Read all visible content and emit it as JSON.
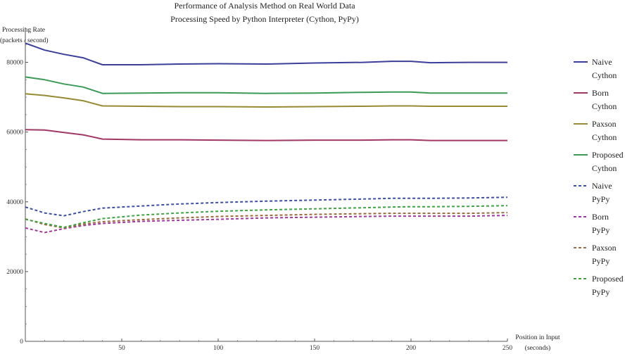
{
  "chart_data": {
    "type": "line",
    "title": "Performance of  Analysis Method on Real World Data",
    "subtitle": "Processing Speed by Python Interpreter (Cython, PyPy)",
    "ylabel": [
      "Processing Rate",
      "(packets / second)"
    ],
    "xlabel": [
      "Position in Input",
      "(seconds)"
    ],
    "xlim": [
      0,
      250
    ],
    "ylim": [
      0,
      90000
    ],
    "x_ticks": [
      50,
      100,
      150,
      200,
      250
    ],
    "y_ticks": [
      0,
      20000,
      40000,
      60000,
      80000
    ],
    "x_tick_labels": [
      "50",
      "100",
      "150",
      "200",
      "250"
    ],
    "y_tick_labels": [
      "0",
      "20000",
      "40000",
      "60000",
      "80000"
    ],
    "legend_position": "right",
    "x": [
      0,
      10,
      20,
      30,
      40,
      60,
      80,
      100,
      125,
      150,
      175,
      190,
      200,
      210,
      230,
      250
    ],
    "series": [
      {
        "name": [
          "Naive",
          "Cython"
        ],
        "color": "#3b3f9a",
        "style": "solid",
        "values": [
          85500,
          83500,
          82300,
          81300,
          79300,
          79300,
          79500,
          79600,
          79500,
          79800,
          80000,
          80300,
          80300,
          79900,
          80000,
          80000
        ]
      },
      {
        "name": [
          "Born",
          "Cython"
        ],
        "color": "#a23766",
        "style": "solid",
        "values": [
          60700,
          60600,
          59900,
          59200,
          58000,
          57800,
          57800,
          57700,
          57600,
          57700,
          57700,
          57800,
          57800,
          57600,
          57600,
          57600
        ]
      },
      {
        "name": [
          "Paxson",
          "Cython"
        ],
        "color": "#968a33",
        "style": "solid",
        "values": [
          71000,
          70500,
          69800,
          69000,
          67500,
          67400,
          67300,
          67300,
          67200,
          67300,
          67400,
          67500,
          67500,
          67400,
          67400,
          67400
        ]
      },
      {
        "name": [
          "Proposed",
          "Cython"
        ],
        "color": "#3c9a57",
        "style": "solid",
        "values": [
          75800,
          75000,
          73800,
          72900,
          71100,
          71200,
          71300,
          71300,
          71100,
          71200,
          71400,
          71500,
          71500,
          71200,
          71200,
          71200
        ]
      },
      {
        "name": [
          "Naive",
          "PyPy"
        ],
        "color": "#3b4fa5",
        "style": "dashed",
        "values": [
          38500,
          36800,
          36000,
          37200,
          38200,
          38800,
          39400,
          39800,
          40200,
          40500,
          40800,
          41000,
          41000,
          41000,
          41100,
          41300
        ]
      },
      {
        "name": [
          "Born",
          "PyPy"
        ],
        "color": "#a0379e",
        "style": "dashed",
        "values": [
          32500,
          31200,
          32300,
          33200,
          33800,
          34400,
          34700,
          35000,
          35400,
          35600,
          35800,
          35900,
          35900,
          35900,
          35900,
          36100
        ]
      },
      {
        "name": [
          "Paxson",
          "PyPy"
        ],
        "color": "#9b6a3a",
        "style": "dashed",
        "values": [
          35100,
          33500,
          32500,
          33600,
          34300,
          34900,
          35400,
          35800,
          36100,
          36400,
          36600,
          36700,
          36700,
          36700,
          36700,
          36900
        ]
      },
      {
        "name": [
          "Proposed",
          "PyPy"
        ],
        "color": "#3ea342",
        "style": "dashed",
        "values": [
          35000,
          33800,
          32700,
          34000,
          35200,
          36200,
          36800,
          37300,
          37700,
          38000,
          38300,
          38500,
          38600,
          38600,
          38700,
          38900
        ]
      }
    ]
  }
}
